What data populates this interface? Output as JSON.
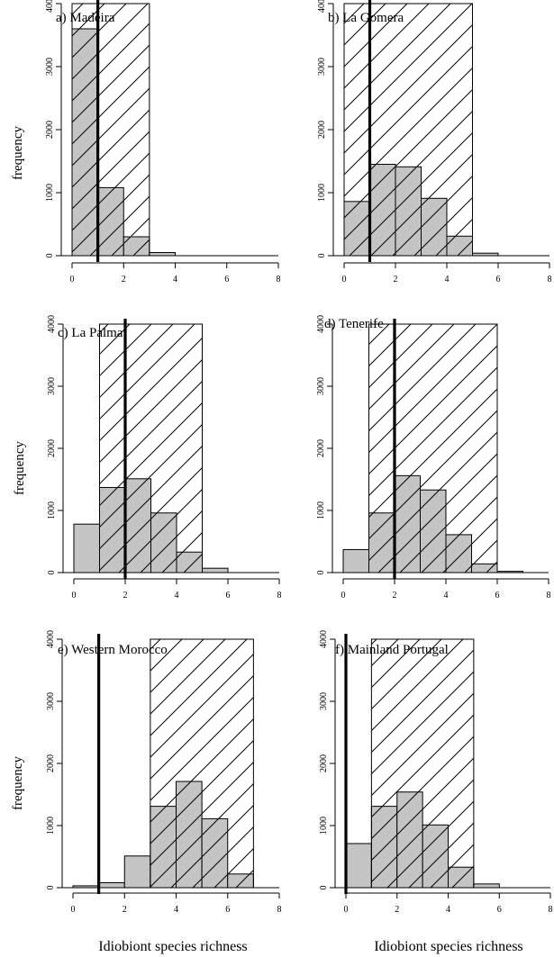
{
  "chart_data": [
    {
      "type": "bar",
      "title": "a) Madeira",
      "ylabel": "frequency",
      "xlabel": "",
      "xlim": [
        0,
        8
      ],
      "ylim": [
        0,
        4000
      ],
      "x_ticks": [
        "0",
        "2",
        "4",
        "6",
        "8"
      ],
      "y_ticks": [
        "0",
        "1000",
        "2000",
        "3000",
        "4000"
      ],
      "bins": [
        [
          0,
          1
        ],
        [
          1,
          2
        ],
        [
          2,
          3
        ],
        [
          3,
          4
        ]
      ],
      "values": [
        3600,
        1080,
        300,
        50
      ],
      "hatched_interval": [
        0,
        3
      ],
      "observed": 1
    },
    {
      "type": "bar",
      "title": "b) La Gomera",
      "ylabel": "",
      "xlabel": "",
      "xlim": [
        0,
        8
      ],
      "ylim": [
        0,
        4000
      ],
      "x_ticks": [
        "0",
        "2",
        "4",
        "6",
        "8"
      ],
      "y_ticks": [
        "0",
        "1000",
        "2000",
        "3000",
        "4000"
      ],
      "bins": [
        [
          0,
          1
        ],
        [
          1,
          2
        ],
        [
          2,
          3
        ],
        [
          3,
          4
        ],
        [
          4,
          5
        ],
        [
          5,
          6
        ]
      ],
      "values": [
        860,
        1450,
        1410,
        910,
        310,
        40
      ],
      "hatched_interval": [
        0,
        5
      ],
      "observed": 1
    },
    {
      "type": "bar",
      "title": "c) La Palma",
      "ylabel": "frequency",
      "xlabel": "",
      "xlim": [
        0,
        8
      ],
      "ylim": [
        0,
        4000
      ],
      "x_ticks": [
        "0",
        "2",
        "4",
        "6",
        "8"
      ],
      "y_ticks": [
        "0",
        "1000",
        "2000",
        "3000",
        "4000"
      ],
      "bins": [
        [
          0,
          1
        ],
        [
          1,
          2
        ],
        [
          2,
          3
        ],
        [
          3,
          4
        ],
        [
          4,
          5
        ],
        [
          5,
          6
        ]
      ],
      "values": [
        780,
        1370,
        1510,
        960,
        330,
        70
      ],
      "hatched_interval": [
        1,
        5
      ],
      "observed": 2
    },
    {
      "type": "bar",
      "title": "d) Tenerife",
      "ylabel": "",
      "xlabel": "",
      "xlim": [
        0,
        8
      ],
      "ylim": [
        0,
        4000
      ],
      "x_ticks": [
        "0",
        "2",
        "4",
        "6",
        "8"
      ],
      "y_ticks": [
        "0",
        "1000",
        "2000",
        "3000",
        "4000"
      ],
      "bins": [
        [
          0,
          1
        ],
        [
          1,
          2
        ],
        [
          2,
          3
        ],
        [
          3,
          4
        ],
        [
          4,
          5
        ],
        [
          5,
          6
        ],
        [
          6,
          7
        ]
      ],
      "values": [
        370,
        960,
        1560,
        1330,
        610,
        140,
        20
      ],
      "hatched_interval": [
        1,
        6
      ],
      "observed": 2
    },
    {
      "type": "bar",
      "title": "e) Western Morocco",
      "ylabel": "frequency",
      "xlabel": "Idiobiont species richness",
      "xlim": [
        0,
        8
      ],
      "ylim": [
        0,
        4000
      ],
      "x_ticks": [
        "0",
        "2",
        "4",
        "6",
        "8"
      ],
      "y_ticks": [
        "0",
        "1000",
        "2000",
        "3000",
        "4000"
      ],
      "bins": [
        [
          0,
          1
        ],
        [
          1,
          2
        ],
        [
          2,
          3
        ],
        [
          3,
          4
        ],
        [
          4,
          5
        ],
        [
          5,
          6
        ],
        [
          6,
          7
        ]
      ],
      "values": [
        30,
        80,
        510,
        1310,
        1710,
        1110,
        220
      ],
      "hatched_interval": [
        3,
        7
      ],
      "observed": 1
    },
    {
      "type": "bar",
      "title": "f) Mainland Portugal",
      "ylabel": "",
      "xlabel": "Idiobiont species richness",
      "xlim": [
        0,
        8
      ],
      "ylim": [
        0,
        4000
      ],
      "x_ticks": [
        "0",
        "2",
        "4",
        "6",
        "8"
      ],
      "y_ticks": [
        "0",
        "1000",
        "2000",
        "3000",
        "4000"
      ],
      "bins": [
        [
          0,
          1
        ],
        [
          1,
          2
        ],
        [
          2,
          3
        ],
        [
          3,
          4
        ],
        [
          4,
          5
        ],
        [
          5,
          6
        ]
      ],
      "values": [
        710,
        1310,
        1540,
        1010,
        330,
        60
      ],
      "hatched_interval": [
        1,
        5
      ],
      "observed": 0
    }
  ],
  "colors": {
    "bar_fill": "#c4c4c4",
    "stroke": "#000000",
    "background": "#ffffff"
  }
}
